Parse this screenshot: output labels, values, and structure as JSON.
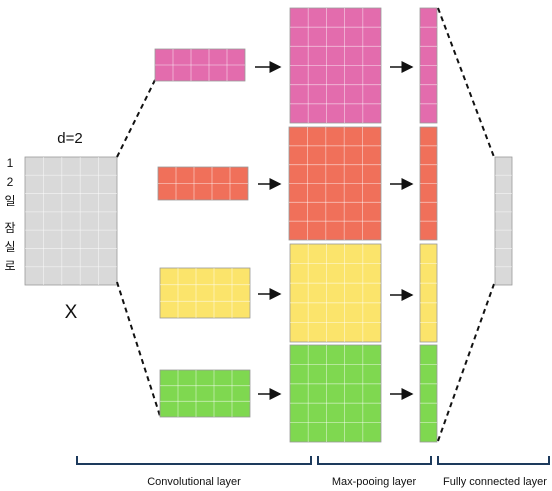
{
  "input": {
    "param_label": "d=2",
    "name": "X",
    "side_chars": [
      "1",
      "2",
      "일",
      "잠",
      "실",
      "로"
    ]
  },
  "colors": {
    "grey": "#d9d9d9",
    "pink": "#e36cad",
    "orange": "#f0705a",
    "yellow": "#fbe46b",
    "green": "#7fd850",
    "grid": "#bdbdbd",
    "bracket": "#1d3a5c",
    "line": "#111111"
  },
  "branches": [
    "pink",
    "orange",
    "yellow",
    "green"
  ],
  "sections": {
    "conv": "Convolutional layer",
    "pool": "Max-pooing layer",
    "fc": "Fully connected layer"
  }
}
